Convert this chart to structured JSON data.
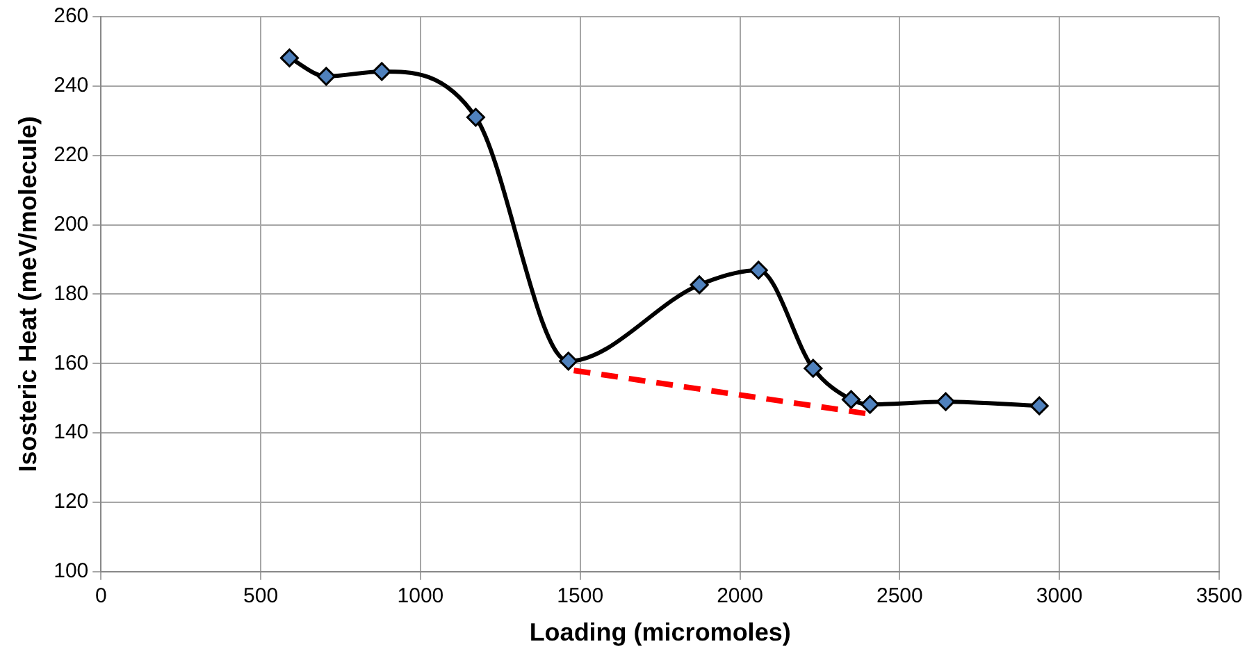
{
  "chart_data": {
    "type": "line",
    "xlabel": "Loading (micromoles)",
    "ylabel": "Isosteric Heat (meV/molecule)",
    "xlim": [
      0,
      3500
    ],
    "xticks": [
      0,
      500,
      1000,
      1500,
      2000,
      2500,
      3000,
      3500
    ],
    "ylim": [
      100,
      260
    ],
    "yticks": [
      100,
      120,
      140,
      160,
      180,
      200,
      220,
      240,
      260
    ],
    "grid": true,
    "legend": false,
    "marker": "diamond",
    "series": [
      {
        "color": "#4f81bd",
        "line_style": "solid",
        "x": [
          590,
          705,
          879,
          1173,
          1463,
          1873,
          2058,
          2229,
          2348,
          2407,
          2644,
          2937
        ],
        "values": [
          248.1,
          242.8,
          244.2,
          231.0,
          160.7,
          182.7,
          186.9,
          158.6,
          149.6,
          148.2,
          149.0,
          147.8
        ]
      },
      {
        "color": "#ff0000",
        "marker": "none",
        "line_style": "dashed",
        "x": [
          1480,
          2400
        ],
        "values": [
          158,
          145.5
        ]
      }
    ]
  }
}
